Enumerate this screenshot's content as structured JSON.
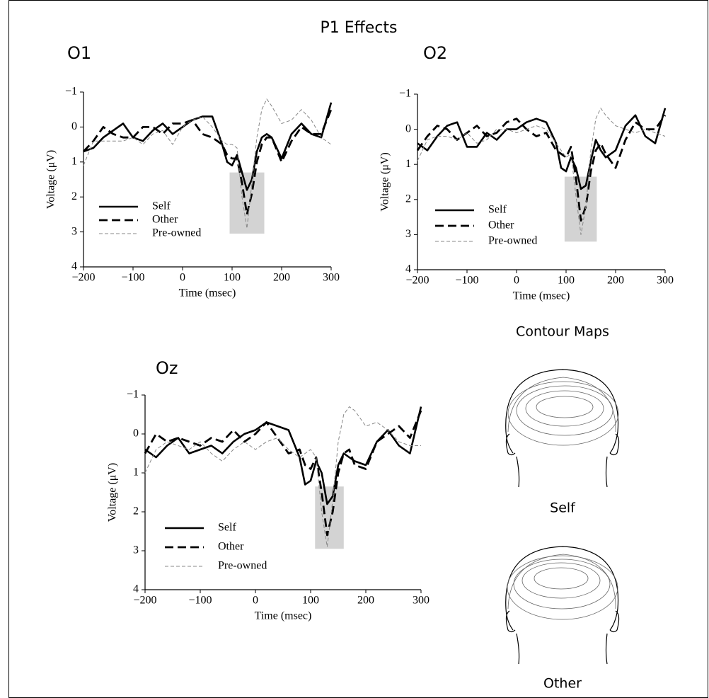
{
  "title": "P1 Effects",
  "chart_data": [
    {
      "type": "line",
      "title": "O1",
      "xlabel": "Time (msec)",
      "ylabel": "Voltage (μV)",
      "x": [
        -200,
        -180,
        -160,
        -140,
        -120,
        -100,
        -80,
        -60,
        -40,
        -20,
        0,
        20,
        40,
        60,
        80,
        90,
        100,
        110,
        120,
        130,
        140,
        150,
        160,
        170,
        180,
        200,
        220,
        240,
        260,
        280,
        300
      ],
      "xlim": [
        -200,
        300
      ],
      "xticks": [
        {
          "value": -200,
          "label": "−200"
        },
        {
          "value": -100,
          "label": "−100"
        },
        0,
        100,
        200,
        300
      ],
      "ylim": [
        -1,
        4
      ],
      "y_inverted": true,
      "yticks": [
        {
          "value": -1,
          "label": "−1"
        },
        0,
        1,
        2,
        3,
        4
      ],
      "highlight": {
        "xlim": [
          95,
          165
        ],
        "ylim": [
          1.3,
          3.05
        ],
        "color": "#d3d3d3"
      },
      "series": [
        {
          "name": "Self",
          "color": "#000000",
          "line_style": "solid",
          "values": [
            0.7,
            0.6,
            0.3,
            0.1,
            -0.1,
            0.3,
            0.4,
            0.1,
            -0.1,
            0.2,
            0.0,
            -0.2,
            -0.3,
            -0.3,
            0.5,
            1.0,
            1.1,
            0.8,
            1.3,
            1.8,
            1.5,
            0.7,
            0.3,
            0.2,
            0.3,
            0.9,
            0.2,
            -0.1,
            0.2,
            0.3,
            -0.7
          ]
        },
        {
          "name": "Other",
          "color": "#000000",
          "line_style": "dashed",
          "values": [
            0.7,
            0.4,
            0.0,
            0.2,
            0.3,
            0.3,
            0.0,
            0.0,
            0.2,
            -0.1,
            -0.1,
            -0.2,
            0.2,
            0.3,
            0.5,
            0.8,
            0.9,
            0.9,
            1.6,
            2.5,
            1.9,
            1.0,
            0.5,
            0.3,
            0.3,
            1.0,
            0.4,
            0.0,
            0.2,
            0.2,
            -0.5
          ]
        },
        {
          "name": "Pre-owned",
          "color": "#888888",
          "line_style": "thin-dashed",
          "values": [
            1.1,
            0.4,
            0.4,
            0.4,
            0.4,
            0.3,
            0.5,
            0.2,
            0.1,
            0.5,
            0.0,
            -0.2,
            -0.3,
            0.0,
            0.4,
            0.5,
            0.5,
            0.6,
            2.0,
            2.9,
            1.6,
            0.3,
            -0.5,
            -0.8,
            -0.6,
            -0.1,
            -0.2,
            -0.5,
            -0.2,
            0.3,
            0.5
          ]
        }
      ]
    },
    {
      "type": "line",
      "title": "O2",
      "xlabel": "Time (msec)",
      "ylabel": "Voltage (μV)",
      "x": [
        -200,
        -180,
        -160,
        -140,
        -120,
        -100,
        -80,
        -60,
        -40,
        -20,
        0,
        20,
        40,
        60,
        80,
        90,
        100,
        110,
        120,
        130,
        140,
        150,
        160,
        170,
        180,
        200,
        220,
        240,
        260,
        280,
        300
      ],
      "xlim": [
        -200,
        300
      ],
      "xticks": [
        {
          "value": -200,
          "label": "−200"
        },
        {
          "value": -100,
          "label": "−100"
        },
        0,
        100,
        200,
        300
      ],
      "ylim": [
        -1,
        4
      ],
      "y_inverted": true,
      "yticks": [
        {
          "value": -1,
          "label": "−1"
        },
        0,
        1,
        2,
        3,
        4
      ],
      "highlight": {
        "xlim": [
          97,
          162
        ],
        "ylim": [
          1.35,
          3.2
        ],
        "color": "#d3d3d3"
      },
      "series": [
        {
          "name": "Self",
          "color": "#000000",
          "line_style": "solid",
          "values": [
            0.4,
            0.6,
            0.2,
            -0.1,
            -0.2,
            0.5,
            0.5,
            0.1,
            0.3,
            0.0,
            0.0,
            -0.2,
            -0.3,
            -0.2,
            0.4,
            1.1,
            1.2,
            0.8,
            1.1,
            1.7,
            1.6,
            0.9,
            0.3,
            0.6,
            0.8,
            0.6,
            -0.1,
            -0.4,
            0.2,
            0.4,
            -0.6
          ]
        },
        {
          "name": "Other",
          "color": "#000000",
          "line_style": "dashed",
          "values": [
            0.6,
            0.2,
            -0.1,
            0.0,
            0.3,
            0.1,
            -0.1,
            0.2,
            0.1,
            -0.2,
            -0.3,
            0.0,
            0.2,
            0.1,
            0.6,
            0.7,
            0.8,
            0.5,
            1.4,
            2.6,
            2.2,
            1.2,
            0.6,
            0.4,
            0.7,
            1.1,
            0.3,
            -0.2,
            0.0,
            0.0,
            -0.4
          ]
        },
        {
          "name": "Pre-owned",
          "color": "#888888",
          "line_style": "thin-dashed",
          "values": [
            0.9,
            0.3,
            0.2,
            0.2,
            0.3,
            0.1,
            0.4,
            0.3,
            0.0,
            0.0,
            0.1,
            0.0,
            -0.1,
            0.0,
            0.4,
            0.6,
            0.8,
            0.7,
            1.9,
            3.0,
            2.2,
            0.6,
            -0.3,
            -0.6,
            -0.4,
            -0.1,
            0.0,
            0.1,
            0.0,
            0.1,
            0.2
          ]
        }
      ]
    },
    {
      "type": "line",
      "title": "Oz",
      "xlabel": "Time (msec)",
      "ylabel": "Voltage (μV)",
      "x": [
        -200,
        -180,
        -160,
        -140,
        -120,
        -100,
        -80,
        -60,
        -40,
        -20,
        0,
        20,
        40,
        60,
        80,
        90,
        100,
        110,
        120,
        130,
        140,
        150,
        160,
        170,
        180,
        200,
        220,
        240,
        260,
        280,
        300
      ],
      "xlim": [
        -200,
        300
      ],
      "xticks": [
        {
          "value": -200,
          "label": "−200"
        },
        {
          "value": -100,
          "label": "−100"
        },
        0,
        100,
        200,
        300
      ],
      "ylim": [
        -1,
        4
      ],
      "y_inverted": true,
      "yticks": [
        {
          "value": -1,
          "label": "−1"
        },
        0,
        1,
        2,
        3,
        4
      ],
      "highlight": {
        "xlim": [
          108,
          160
        ],
        "ylim": [
          1.35,
          2.95
        ],
        "color": "#d3d3d3"
      },
      "series": [
        {
          "name": "Self",
          "color": "#000000",
          "line_style": "solid",
          "values": [
            0.4,
            0.6,
            0.3,
            0.1,
            0.5,
            0.4,
            0.3,
            0.5,
            0.2,
            0.0,
            -0.1,
            -0.3,
            -0.2,
            -0.1,
            0.6,
            1.3,
            1.2,
            0.7,
            1.0,
            1.8,
            1.6,
            0.8,
            0.5,
            0.6,
            0.7,
            0.8,
            0.2,
            -0.1,
            0.3,
            0.5,
            -0.7
          ]
        },
        {
          "name": "Other",
          "color": "#000000",
          "line_style": "dashed",
          "values": [
            0.5,
            0.0,
            0.2,
            0.1,
            0.2,
            0.3,
            0.1,
            0.2,
            -0.1,
            0.2,
            0.0,
            -0.3,
            0.1,
            0.5,
            0.4,
            0.8,
            0.9,
            0.6,
            1.5,
            2.6,
            2.0,
            1.0,
            0.5,
            0.4,
            0.8,
            0.9,
            0.2,
            0.0,
            -0.2,
            0.1,
            -0.6
          ]
        },
        {
          "name": "Pre-owned",
          "color": "#888888",
          "line_style": "thin-dashed",
          "values": [
            1.0,
            0.4,
            0.2,
            0.3,
            0.4,
            0.2,
            0.5,
            0.7,
            0.4,
            0.2,
            0.4,
            0.2,
            0.1,
            0.4,
            0.6,
            0.5,
            0.4,
            0.6,
            2.0,
            2.9,
            1.7,
            0.2,
            -0.5,
            -0.7,
            -0.6,
            -0.2,
            -0.3,
            -0.1,
            0.2,
            0.3,
            0.3
          ]
        }
      ]
    }
  ],
  "contour_maps": {
    "title": "Contour Maps",
    "labels": [
      "Self",
      "Other"
    ]
  }
}
